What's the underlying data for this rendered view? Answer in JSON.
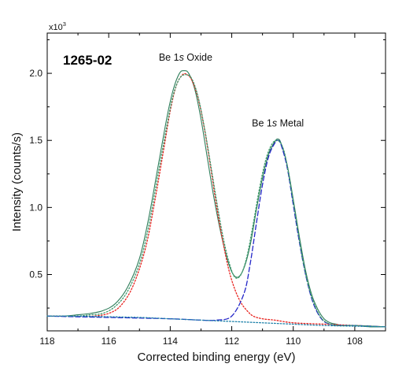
{
  "chart_data": {
    "type": "line",
    "title": "",
    "sample_label": "1265-02",
    "xlabel": "Corrected binding energy (eV)",
    "ylabel": "Intensity (counts/s)",
    "y_multiplier": {
      "base": "x10",
      "exponent": "3"
    },
    "x_reversed": true,
    "xlim": [
      118,
      107
    ],
    "ylim": [
      0.08,
      2.3
    ],
    "x_ticks": [
      118,
      116,
      114,
      112,
      110,
      108
    ],
    "y_ticks": [
      0.5,
      1.0,
      1.5,
      2.0
    ],
    "x_tick_labels": [
      "118",
      "116",
      "114",
      "112",
      "110",
      "108"
    ],
    "y_tick_labels": [
      "0.5",
      "1.0",
      "1.5",
      "2.0"
    ],
    "grid": false,
    "annotations": [
      {
        "prefix": "Be 1",
        "italic": "s",
        "suffix": " Oxide",
        "x": 113.5,
        "y": 2.06
      },
      {
        "prefix": "Be 1",
        "italic": "s",
        "suffix": " Metal",
        "x": 110.5,
        "y": 1.57
      }
    ],
    "series": [
      {
        "role": "measured",
        "color": "#2e7d5a",
        "style": "solid",
        "x": [
          118,
          117.5,
          117,
          116.6,
          116.2,
          115.8,
          115.4,
          115.0,
          114.7,
          114.4,
          114.1,
          113.9,
          113.7,
          113.55,
          113.4,
          113.2,
          113.0,
          112.8,
          112.6,
          112.4,
          112.2,
          112.0,
          111.8,
          111.6,
          111.4,
          111.2,
          111.0,
          110.8,
          110.6,
          110.5,
          110.4,
          110.2,
          110.0,
          109.8,
          109.6,
          109.4,
          109.2,
          109.0,
          108.8,
          108.6,
          108.4,
          108.0,
          107.5,
          107.0
        ],
        "y": [
          0.19,
          0.19,
          0.2,
          0.21,
          0.23,
          0.28,
          0.4,
          0.62,
          0.92,
          1.3,
          1.68,
          1.88,
          2.0,
          2.02,
          2.0,
          1.88,
          1.66,
          1.38,
          1.1,
          0.86,
          0.66,
          0.52,
          0.48,
          0.55,
          0.72,
          0.98,
          1.22,
          1.4,
          1.49,
          1.51,
          1.48,
          1.32,
          1.06,
          0.78,
          0.53,
          0.35,
          0.24,
          0.17,
          0.14,
          0.13,
          0.12,
          0.12,
          0.11,
          0.11
        ]
      },
      {
        "role": "oxide component",
        "color": "#e8231f",
        "style": "dotted",
        "x": [
          118,
          117.5,
          117,
          116.5,
          116.0,
          115.6,
          115.2,
          114.8,
          114.5,
          114.2,
          114.0,
          113.8,
          113.6,
          113.45,
          113.3,
          113.1,
          112.9,
          112.7,
          112.5,
          112.3,
          112.1,
          111.9,
          111.7,
          111.5,
          111.3,
          111.0,
          110.6,
          110.0,
          109.0,
          108.0,
          107.0
        ],
        "y": [
          0.19,
          0.19,
          0.19,
          0.19,
          0.21,
          0.27,
          0.42,
          0.7,
          1.05,
          1.45,
          1.72,
          1.91,
          1.99,
          1.99,
          1.95,
          1.82,
          1.6,
          1.32,
          1.02,
          0.76,
          0.54,
          0.39,
          0.29,
          0.23,
          0.19,
          0.17,
          0.16,
          0.14,
          0.13,
          0.12,
          0.11
        ]
      },
      {
        "role": "metal component",
        "color": "#2326c8",
        "style": "dashed",
        "x": [
          118,
          116,
          114,
          113,
          112.5,
          112.0,
          111.6,
          111.4,
          111.2,
          111.0,
          110.8,
          110.6,
          110.5,
          110.4,
          110.2,
          110.0,
          109.8,
          109.6,
          109.4,
          109.2,
          109.0,
          108.8,
          108.6,
          108.0,
          107.0
        ],
        "y": [
          0.19,
          0.18,
          0.17,
          0.16,
          0.16,
          0.19,
          0.36,
          0.58,
          0.88,
          1.17,
          1.38,
          1.48,
          1.5,
          1.47,
          1.3,
          1.02,
          0.74,
          0.5,
          0.32,
          0.21,
          0.15,
          0.13,
          0.12,
          0.12,
          0.11
        ]
      },
      {
        "role": "fit envelope",
        "color": "#3f9a6e",
        "style": "dotted",
        "x": [
          118,
          117.5,
          117,
          116.6,
          116.2,
          115.8,
          115.4,
          115.0,
          114.7,
          114.4,
          114.1,
          113.9,
          113.7,
          113.5,
          113.3,
          113.1,
          112.9,
          112.7,
          112.5,
          112.3,
          112.1,
          111.9,
          111.7,
          111.5,
          111.3,
          111.1,
          110.9,
          110.7,
          110.5,
          110.3,
          110.1,
          109.9,
          109.7,
          109.5,
          109.3,
          109.1,
          108.9,
          108.6,
          108.0,
          107.0
        ],
        "y": [
          0.19,
          0.19,
          0.19,
          0.2,
          0.21,
          0.26,
          0.37,
          0.58,
          0.86,
          1.24,
          1.62,
          1.84,
          1.96,
          1.99,
          1.96,
          1.83,
          1.61,
          1.34,
          1.06,
          0.8,
          0.6,
          0.48,
          0.5,
          0.64,
          0.88,
          1.14,
          1.35,
          1.47,
          1.5,
          1.42,
          1.18,
          0.9,
          0.62,
          0.41,
          0.27,
          0.18,
          0.14,
          0.12,
          0.12,
          0.11
        ]
      },
      {
        "role": "background",
        "color": "#1a7fa8",
        "style": "dotted",
        "x": [
          118,
          117,
          116,
          115,
          114,
          113,
          112,
          111,
          110,
          109,
          108,
          107
        ],
        "y": [
          0.19,
          0.19,
          0.185,
          0.18,
          0.17,
          0.16,
          0.15,
          0.14,
          0.13,
          0.12,
          0.115,
          0.11
        ]
      }
    ]
  }
}
